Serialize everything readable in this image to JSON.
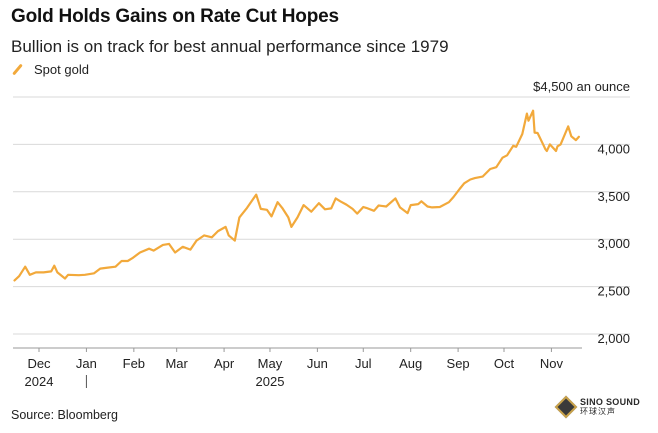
{
  "header": {
    "title": "Gold Holds Gains on Rate Cut Hopes",
    "subtitle": "Bullion is on track for best annual performance since 1979"
  },
  "footer": {
    "source": "Source: Bloomberg"
  },
  "watermark": {
    "line1": "SINO SOUND",
    "line2": "环球汉声"
  },
  "colors": {
    "series": "#f2a93b",
    "grid": "#d9d9d9",
    "axis": "#999999",
    "text": "#222222"
  },
  "chart_data": {
    "type": "line",
    "title": "Gold Holds Gains on Rate Cut Hopes",
    "subtitle": "Bullion is on track for best annual performance since 1979",
    "ylabel": "$4,500 an ounce",
    "xlabel": "",
    "ylim": [
      2000,
      4500
    ],
    "yticks": [
      {
        "value": 2000,
        "label": "2,000"
      },
      {
        "value": 2500,
        "label": "2,500"
      },
      {
        "value": 3000,
        "label": "3,000"
      },
      {
        "value": 3500,
        "label": "3,500"
      },
      {
        "value": 4000,
        "label": "4,000"
      },
      {
        "value": 4500,
        "label": "$4,500 an ounce"
      }
    ],
    "xlim": [
      "2024-11-14",
      "2025-11-21"
    ],
    "xticks": [
      {
        "date": "2024-12-01",
        "label": "Dec"
      },
      {
        "date": "2025-01-01",
        "label": "Jan"
      },
      {
        "date": "2025-02-01",
        "label": "Feb"
      },
      {
        "date": "2025-03-01",
        "label": "Mar"
      },
      {
        "date": "2025-04-01",
        "label": "Apr"
      },
      {
        "date": "2025-05-01",
        "label": "May"
      },
      {
        "date": "2025-06-01",
        "label": "Jun"
      },
      {
        "date": "2025-07-01",
        "label": "Jul"
      },
      {
        "date": "2025-08-01",
        "label": "Aug"
      },
      {
        "date": "2025-09-01",
        "label": "Sep"
      },
      {
        "date": "2025-10-01",
        "label": "Oct"
      },
      {
        "date": "2025-11-01",
        "label": "Nov"
      }
    ],
    "year_labels": [
      {
        "date": "2024-12-01",
        "label": "2024"
      },
      {
        "date": "2025-05-01",
        "label": "2025"
      }
    ],
    "year_divider": "2025-01-01",
    "grid": true,
    "legend_position": "top-left",
    "series": [
      {
        "name": "Spot gold",
        "color": "#f2a93b",
        "points": [
          [
            "2024-11-15",
            2565
          ],
          [
            "2024-11-18",
            2610
          ],
          [
            "2024-11-22",
            2710
          ],
          [
            "2024-11-25",
            2625
          ],
          [
            "2024-11-29",
            2650
          ],
          [
            "2024-12-04",
            2650
          ],
          [
            "2024-12-09",
            2660
          ],
          [
            "2024-12-11",
            2720
          ],
          [
            "2024-12-13",
            2650
          ],
          [
            "2024-12-18",
            2585
          ],
          [
            "2024-12-20",
            2625
          ],
          [
            "2024-12-27",
            2620
          ],
          [
            "2024-12-31",
            2625
          ],
          [
            "2025-01-06",
            2640
          ],
          [
            "2025-01-10",
            2690
          ],
          [
            "2025-01-15",
            2700
          ],
          [
            "2025-01-20",
            2710
          ],
          [
            "2025-01-24",
            2770
          ],
          [
            "2025-01-28",
            2770
          ],
          [
            "2025-01-31",
            2800
          ],
          [
            "2025-02-05",
            2860
          ],
          [
            "2025-02-11",
            2900
          ],
          [
            "2025-02-14",
            2880
          ],
          [
            "2025-02-20",
            2940
          ],
          [
            "2025-02-24",
            2950
          ],
          [
            "2025-02-28",
            2860
          ],
          [
            "2025-03-05",
            2920
          ],
          [
            "2025-03-10",
            2890
          ],
          [
            "2025-03-14",
            2985
          ],
          [
            "2025-03-19",
            3040
          ],
          [
            "2025-03-24",
            3020
          ],
          [
            "2025-03-28",
            3085
          ],
          [
            "2025-04-02",
            3130
          ],
          [
            "2025-04-04",
            3040
          ],
          [
            "2025-04-08",
            2985
          ],
          [
            "2025-04-11",
            3230
          ],
          [
            "2025-04-16",
            3330
          ],
          [
            "2025-04-22",
            3470
          ],
          [
            "2025-04-25",
            3320
          ],
          [
            "2025-04-29",
            3310
          ],
          [
            "2025-05-02",
            3240
          ],
          [
            "2025-05-06",
            3390
          ],
          [
            "2025-05-09",
            3330
          ],
          [
            "2025-05-13",
            3230
          ],
          [
            "2025-05-15",
            3130
          ],
          [
            "2025-05-19",
            3230
          ],
          [
            "2025-05-23",
            3360
          ],
          [
            "2025-05-28",
            3290
          ],
          [
            "2025-06-02",
            3380
          ],
          [
            "2025-06-06",
            3315
          ],
          [
            "2025-06-10",
            3325
          ],
          [
            "2025-06-13",
            3430
          ],
          [
            "2025-06-16",
            3400
          ],
          [
            "2025-06-20",
            3365
          ],
          [
            "2025-06-24",
            3320
          ],
          [
            "2025-06-27",
            3270
          ],
          [
            "2025-07-01",
            3340
          ],
          [
            "2025-07-03",
            3330
          ],
          [
            "2025-07-08",
            3300
          ],
          [
            "2025-07-11",
            3355
          ],
          [
            "2025-07-16",
            3345
          ],
          [
            "2025-07-22",
            3430
          ],
          [
            "2025-07-25",
            3335
          ],
          [
            "2025-07-30",
            3275
          ],
          [
            "2025-08-01",
            3360
          ],
          [
            "2025-08-06",
            3370
          ],
          [
            "2025-08-08",
            3400
          ],
          [
            "2025-08-12",
            3345
          ],
          [
            "2025-08-15",
            3335
          ],
          [
            "2025-08-20",
            3340
          ],
          [
            "2025-08-26",
            3390
          ],
          [
            "2025-08-29",
            3445
          ],
          [
            "2025-09-02",
            3530
          ],
          [
            "2025-09-05",
            3590
          ],
          [
            "2025-09-09",
            3630
          ],
          [
            "2025-09-12",
            3645
          ],
          [
            "2025-09-17",
            3660
          ],
          [
            "2025-09-22",
            3740
          ],
          [
            "2025-09-26",
            3760
          ],
          [
            "2025-09-30",
            3860
          ],
          [
            "2025-10-03",
            3885
          ],
          [
            "2025-10-07",
            3985
          ],
          [
            "2025-10-09",
            3975
          ],
          [
            "2025-10-13",
            4110
          ],
          [
            "2025-10-16",
            4325
          ],
          [
            "2025-10-17",
            4250
          ],
          [
            "2025-10-20",
            4355
          ],
          [
            "2025-10-21",
            4125
          ],
          [
            "2025-10-23",
            4120
          ],
          [
            "2025-10-27",
            3985
          ],
          [
            "2025-10-28",
            3950
          ],
          [
            "2025-10-29",
            3930
          ],
          [
            "2025-10-31",
            4000
          ],
          [
            "2025-11-04",
            3930
          ],
          [
            "2025-11-05",
            3980
          ],
          [
            "2025-11-07",
            4000
          ],
          [
            "2025-11-10",
            4115
          ],
          [
            "2025-11-12",
            4190
          ],
          [
            "2025-11-14",
            4085
          ],
          [
            "2025-11-17",
            4045
          ],
          [
            "2025-11-19",
            4080
          ]
        ]
      }
    ]
  }
}
